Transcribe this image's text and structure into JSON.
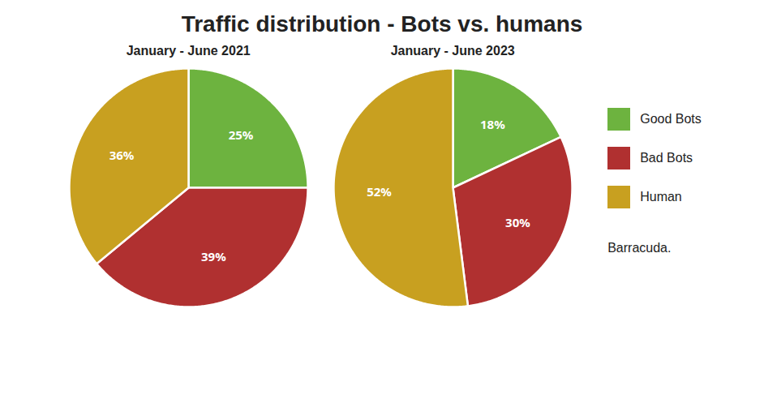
{
  "chart_data": {
    "type": "pie",
    "title": "Traffic distribution - Bots vs. humans",
    "categories": [
      "Good Bots",
      "Bad Bots",
      "Human"
    ],
    "colors": [
      "#6db33f",
      "#b03030",
      "#c8a020"
    ],
    "series": [
      {
        "name": "January - June 2021",
        "values": [
          25,
          39,
          36
        ],
        "value_labels": [
          "25%",
          "39%",
          "36%"
        ]
      },
      {
        "name": "January - June 2023",
        "values": [
          18,
          30,
          52
        ],
        "value_labels": [
          "18%",
          "30%",
          "52%"
        ]
      }
    ],
    "data_labels": true,
    "legend": "right",
    "annotations": [
      "Barracuda."
    ]
  }
}
